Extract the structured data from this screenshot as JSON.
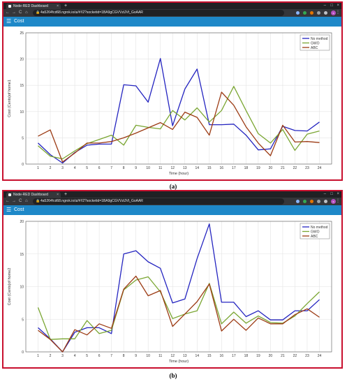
{
  "browser": {
    "tab_title": "Node-RED Dashboard",
    "tab_close": "×",
    "new_tab": "+",
    "win_min": "–",
    "win_max": "□",
    "win_close": "×",
    "back": "←",
    "forward": "→",
    "reload": "C",
    "home": "⌂",
    "lock": "🔒",
    "url": "4a5264fcd68.ngrok.io/ui/#!/2?socketid=1BA9gCGVVzlJVt_GoAAR",
    "kebab": "⋮",
    "avatar": "s",
    "colors": {
      "frame": "#c8102e",
      "appbar": "#1e88c8"
    }
  },
  "app": {
    "menu_icon": "☰",
    "title": "Cost"
  },
  "figures": [
    {
      "label": "(a)"
    },
    {
      "label": "(b)"
    }
  ],
  "chart_data": [
    {
      "type": "line",
      "xlabel": "Time (hour)",
      "ylabel": "Cost (Cents)of home1",
      "xlim": [
        0,
        25
      ],
      "ylim": [
        0,
        25
      ],
      "xticks": [
        1,
        2,
        3,
        4,
        5,
        6,
        7,
        8,
        9,
        10,
        11,
        12,
        13,
        14,
        15,
        16,
        17,
        18,
        19,
        20,
        21,
        22,
        23,
        24
      ],
      "yticks": [
        0,
        5,
        10,
        15,
        20,
        25
      ],
      "grid": true,
      "legend_position": "top-right",
      "x": [
        1,
        2,
        3,
        4,
        5,
        6,
        7,
        8,
        9,
        10,
        11,
        12,
        13,
        14,
        15,
        16,
        17,
        18,
        19,
        20,
        21,
        22,
        23,
        24
      ],
      "series": [
        {
          "name": "No method",
          "color": "#2424c0",
          "values": [
            4.0,
            1.8,
            0.2,
            2.2,
            3.6,
            3.8,
            3.8,
            15.1,
            14.9,
            11.8,
            20.1,
            7.3,
            14.3,
            18.1,
            7.5,
            7.5,
            7.6,
            5.5,
            2.7,
            2.9,
            7.2,
            6.4,
            6.3,
            8.0
          ]
        },
        {
          "name": "GWO",
          "color": "#7aa632",
          "values": [
            3.5,
            1.5,
            1.0,
            2.5,
            3.9,
            4.7,
            5.5,
            3.6,
            7.4,
            7.0,
            6.7,
            10.2,
            8.4,
            10.7,
            8.0,
            10.2,
            14.8,
            10.2,
            5.8,
            4.0,
            6.6,
            2.6,
            5.7,
            6.3
          ]
        },
        {
          "name": "ABC",
          "color": "#9c3b14",
          "values": [
            5.3,
            6.5,
            0.4,
            2.1,
            4.0,
            4.0,
            4.3,
            5.0,
            5.9,
            6.9,
            7.9,
            6.6,
            9.9,
            8.9,
            5.5,
            13.7,
            11.2,
            7.1,
            4.0,
            1.6,
            7.4,
            4.2,
            4.3,
            4.1
          ]
        }
      ]
    },
    {
      "type": "line",
      "xlabel": "Time (hour)",
      "ylabel": "Cost (Cents)of home2",
      "xlim": [
        0,
        25
      ],
      "ylim": [
        0,
        20
      ],
      "xticks": [
        1,
        2,
        3,
        4,
        5,
        6,
        7,
        8,
        9,
        10,
        11,
        12,
        13,
        14,
        15,
        16,
        17,
        18,
        19,
        20,
        21,
        22,
        23,
        24
      ],
      "yticks": [
        0,
        5,
        10,
        15,
        20
      ],
      "grid": true,
      "legend_position": "top-right",
      "x": [
        1,
        2,
        3,
        4,
        5,
        6,
        7,
        8,
        9,
        10,
        11,
        12,
        13,
        14,
        15,
        16,
        17,
        18,
        19,
        20,
        21,
        22,
        23,
        24
      ],
      "series": [
        {
          "name": "No method",
          "color": "#2424c0",
          "values": [
            3.7,
            2.0,
            0.0,
            3.0,
            3.7,
            3.7,
            2.8,
            15.0,
            15.5,
            13.8,
            12.8,
            7.5,
            8.1,
            14.3,
            19.6,
            7.6,
            7.6,
            5.4,
            6.3,
            4.9,
            4.9,
            6.3,
            6.3,
            8.0
          ]
        },
        {
          "name": "GWO",
          "color": "#7aa632",
          "values": [
            6.8,
            1.9,
            2.0,
            2.0,
            4.8,
            2.8,
            3.3,
            9.5,
            11.0,
            11.5,
            9.2,
            5.1,
            5.8,
            6.3,
            10.5,
            4.3,
            6.1,
            4.4,
            5.5,
            4.5,
            4.4,
            5.5,
            7.4,
            9.2
          ]
        },
        {
          "name": "ABC",
          "color": "#9c3b14",
          "values": [
            3.3,
            1.9,
            0.0,
            3.4,
            2.6,
            4.3,
            3.6,
            9.6,
            11.6,
            8.6,
            9.4,
            3.9,
            5.8,
            7.7,
            10.4,
            3.2,
            5.0,
            3.3,
            5.2,
            4.3,
            4.3,
            5.7,
            6.6,
            5.3
          ]
        }
      ]
    }
  ]
}
